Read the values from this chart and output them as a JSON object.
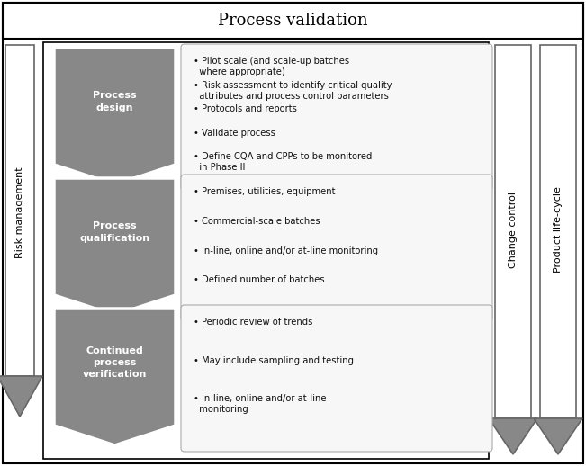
{
  "title": "Process validation",
  "bg_color": "#ffffff",
  "border_color": "#000000",
  "arrow_fill": "#888888",
  "arrow_stroke": "#888888",
  "chevron_color": "#888888",
  "chevron_text_color": "#ffffff",
  "box_bg": "#f7f7f7",
  "box_border": "#aaaaaa",
  "phases": [
    {
      "label": "Process\ndesign",
      "bullets": [
        "Pilot scale (and scale-up batches\n  where appropriate)",
        "Risk assessment to identify critical quality\n  attributes and process control parameters",
        "Protocols and reports",
        "Validate process",
        "Define CQA and CPPs to be monitored\n  in Phase II"
      ]
    },
    {
      "label": "Process\nqualification",
      "bullets": [
        "Premises, utilities, equipment",
        "Commercial-scale batches",
        "In-line, online and/or at-line monitoring",
        "Defined number of batches"
      ]
    },
    {
      "label": "Continued\nprocess\nverification",
      "bullets": [
        "Periodic review of trends",
        "May include sampling and testing",
        "In-line, online and/or at-line\n  monitoring"
      ]
    }
  ],
  "left_label": "Risk management",
  "right_label1": "Change control",
  "right_label2": "Product life-cycle",
  "title_fontsize": 13,
  "label_fontsize": 8,
  "bullet_fontsize": 7.2,
  "side_fontsize": 8
}
